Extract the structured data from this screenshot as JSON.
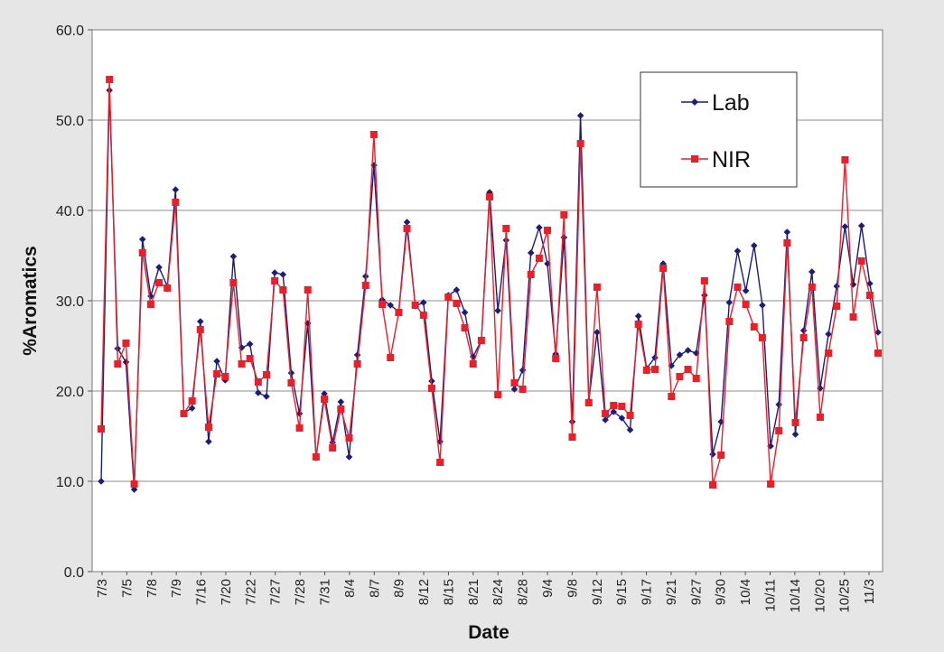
{
  "chart_data": {
    "type": "line",
    "xlabel": "Date",
    "ylabel": "%Aromatics",
    "ylim": [
      0,
      60
    ],
    "yticks": [
      "0.0",
      "10.0",
      "20.0",
      "30.0",
      "40.0",
      "50.0",
      "60.0"
    ],
    "grid": "horizontal",
    "legend_position": "top-right",
    "x_tick_labels": [
      "7/3",
      "7/5",
      "7/8",
      "7/9",
      "7/16",
      "7/20",
      "7/22",
      "7/27",
      "7/28",
      "7/31",
      "8/4",
      "8/7",
      "8/9",
      "8/12",
      "8/15",
      "8/21",
      "8/24",
      "8/28",
      "9/4",
      "9/8",
      "9/12",
      "9/15",
      "9/17",
      "9/21",
      "9/27",
      "9/30",
      "10/4",
      "10/11",
      "10/14",
      "10/20",
      "10/25",
      "11/3"
    ],
    "series": [
      {
        "name": "Lab",
        "color": "#1c1c7a",
        "marker": "diamond",
        "values": [
          10.0,
          53.3,
          24.7,
          23.2,
          9.1,
          36.8,
          30.5,
          33.7,
          31.6,
          42.3,
          17.6,
          18.1,
          27.7,
          14.4,
          23.3,
          21.2,
          34.9,
          24.8,
          25.2,
          19.8,
          19.4,
          33.1,
          32.9,
          22.0,
          17.5,
          27.5,
          12.6,
          19.7,
          14.3,
          18.8,
          12.7,
          24.0,
          32.7,
          45.0,
          30.1,
          29.5,
          28.8,
          38.7,
          29.4,
          29.8,
          21.1,
          14.4,
          30.6,
          31.2,
          28.7,
          23.8,
          25.6,
          42.0,
          28.9,
          36.7,
          20.2,
          22.3,
          35.3,
          38.1,
          34.1,
          24.1,
          37.0,
          16.6,
          50.5,
          18.9,
          26.5,
          16.8,
          17.7,
          17.0,
          15.7,
          28.3,
          22.5,
          23.7,
          34.1,
          22.8,
          24.0,
          24.5,
          24.2,
          30.6,
          13.0,
          16.6,
          29.8,
          35.5,
          31.1,
          36.1,
          29.5,
          13.9,
          18.5,
          37.6,
          15.2,
          26.7,
          33.2,
          20.3,
          26.3,
          31.6,
          38.2,
          31.8,
          38.3,
          31.9,
          26.5
        ],
        "values_note_removed": true
      },
      {
        "name": "NIR",
        "color": "#e8202a",
        "marker": "square",
        "values": [
          15.8,
          54.5,
          23.0,
          25.3,
          9.7,
          35.3,
          29.6,
          32.0,
          31.4,
          40.9,
          17.5,
          18.9,
          26.8,
          16.0,
          21.9,
          21.6,
          32.0,
          23.0,
          23.6,
          21.0,
          21.8,
          32.2,
          31.2,
          20.9,
          15.9,
          31.2,
          12.7,
          19.1,
          13.7,
          18.0,
          14.8,
          23.0,
          31.7,
          48.4,
          29.6,
          23.7,
          28.7,
          38.0,
          29.5,
          28.4,
          20.3,
          12.1,
          30.4,
          29.7,
          27.0,
          23.0,
          25.6,
          41.5,
          19.6,
          38.0,
          20.9,
          20.2,
          32.9,
          34.7,
          37.8,
          23.6,
          39.5,
          14.9,
          47.4,
          18.7,
          31.5,
          17.5,
          18.4,
          18.3,
          17.3,
          27.4,
          22.3,
          22.4,
          33.6,
          19.4,
          21.6,
          22.4,
          21.4,
          32.2,
          9.6,
          12.9,
          27.7,
          31.5,
          29.6,
          27.1,
          25.9,
          9.7,
          15.6,
          36.4,
          16.5,
          25.9,
          31.5,
          17.1,
          24.2,
          29.4,
          45.6,
          28.2,
          34.4,
          30.6,
          24.2
        ]
      }
    ]
  }
}
